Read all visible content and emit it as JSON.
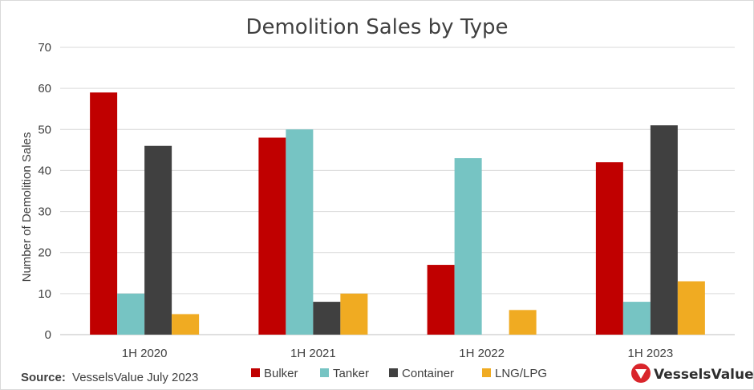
{
  "chart_data": {
    "type": "bar",
    "title": "Demolition Sales by Type",
    "ylabel": "Number of Demolition Sales",
    "xlabel": "",
    "ylim": [
      0,
      70
    ],
    "yticks": [
      0,
      10,
      20,
      30,
      40,
      50,
      60,
      70
    ],
    "categories": [
      "1H 2020",
      "1H 2021",
      "1H 2022",
      "1H 2023"
    ],
    "series": [
      {
        "name": "Bulker",
        "color": "#c00000",
        "values": [
          59,
          48,
          17,
          42
        ]
      },
      {
        "name": "Tanker",
        "color": "#76c4c3",
        "values": [
          10,
          50,
          43,
          8
        ]
      },
      {
        "name": "Container",
        "color": "#404040",
        "values": [
          46,
          8,
          0,
          51
        ]
      },
      {
        "name": "LNG/LPG",
        "color": "#f0ab22",
        "values": [
          5,
          10,
          6,
          13
        ]
      }
    ],
    "grid": true,
    "legend_position": "bottom"
  },
  "footer": {
    "source_label": "Source:",
    "source_text": "VesselsValue July 2023",
    "brand_name": "VesselsValue",
    "brand_icon": "vesselsvalue-logo-icon",
    "brand_color": "#d9252b"
  }
}
